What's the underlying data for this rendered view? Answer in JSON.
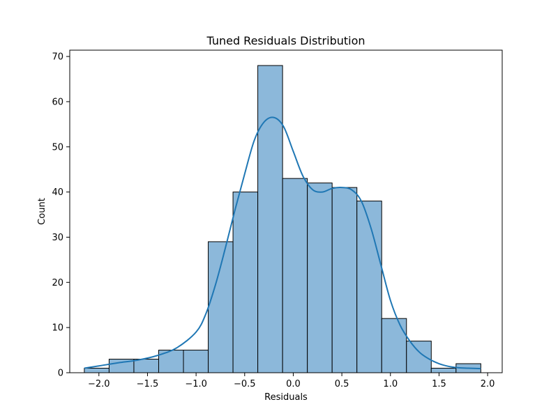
{
  "chart_data": {
    "type": "bar",
    "subtype": "histogram-with-kde",
    "title": "Tuned Residuals Distribution",
    "xlabel": "Residuals",
    "ylabel": "Count",
    "xlim": [
      -2.3,
      2.15
    ],
    "ylim": [
      0,
      71.4
    ],
    "xticks": [
      -2.0,
      -1.5,
      -1.0,
      -0.5,
      0.0,
      0.5,
      1.0,
      1.5,
      2.0
    ],
    "xtick_labels": [
      "−2.0",
      "−1.5",
      "−1.0",
      "−0.5",
      "0.0",
      "0.5",
      "1.0",
      "1.5",
      "2.0"
    ],
    "yticks": [
      0,
      10,
      20,
      30,
      40,
      50,
      60,
      70
    ],
    "ytick_labels": [
      "0",
      "10",
      "20",
      "30",
      "40",
      "50",
      "60",
      "70"
    ],
    "bin_edges": [
      -2.15,
      -1.895,
      -1.64,
      -1.385,
      -1.13,
      -0.875,
      -0.62,
      -0.365,
      -0.11,
      0.145,
      0.4,
      0.655,
      0.91,
      1.165,
      1.42,
      1.675,
      1.93
    ],
    "counts": [
      1,
      3,
      3,
      5,
      5,
      29,
      40,
      68,
      43,
      42,
      41,
      38,
      12,
      7,
      1,
      2
    ],
    "kde": {
      "x": [
        -2.15,
        -2.0,
        -1.8,
        -1.6,
        -1.4,
        -1.2,
        -1.0,
        -0.9,
        -0.8,
        -0.7,
        -0.6,
        -0.5,
        -0.4,
        -0.3,
        -0.2,
        -0.1,
        0.0,
        0.1,
        0.2,
        0.3,
        0.4,
        0.5,
        0.6,
        0.7,
        0.8,
        0.9,
        1.0,
        1.1,
        1.2,
        1.3,
        1.4,
        1.5,
        1.6,
        1.7,
        1.8,
        1.93
      ],
      "y": [
        1,
        1.5,
        2.2,
        2.8,
        3.8,
        5.5,
        9,
        13,
        19.5,
        27.5,
        36,
        44,
        51.5,
        55.5,
        56.5,
        54.5,
        49,
        43.5,
        40.5,
        40,
        40.8,
        41,
        40.5,
        38,
        32,
        24,
        16,
        10.5,
        7,
        4.5,
        3,
        2,
        1.4,
        1.1,
        1,
        0.9
      ]
    },
    "colors": {
      "bar_fill": "#8cb8da",
      "bar_edge": "#000000",
      "kde_line": "#1f77b4"
    },
    "grid": false,
    "legend": "none"
  }
}
